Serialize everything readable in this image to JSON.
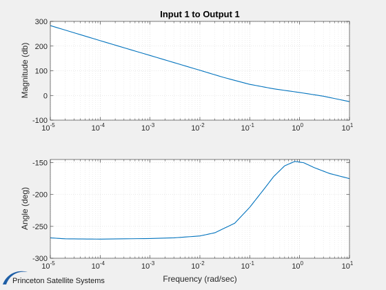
{
  "chart_data": [
    {
      "type": "line",
      "title": "Input 1 to Output 1",
      "xlabel": "",
      "ylabel": "Magnitude (db)",
      "xscale": "log",
      "xlim": [
        1e-05,
        10
      ],
      "ylim": [
        -100,
        300
      ],
      "x_ticks": [
        {
          "value": 1e-05,
          "base": "10",
          "exp": "-5"
        },
        {
          "value": 0.0001,
          "base": "10",
          "exp": "-4"
        },
        {
          "value": 0.001,
          "base": "10",
          "exp": "-3"
        },
        {
          "value": 0.01,
          "base": "10",
          "exp": "-2"
        },
        {
          "value": 0.1,
          "base": "10",
          "exp": "-1"
        },
        {
          "value": 1,
          "base": "10",
          "exp": "0"
        },
        {
          "value": 10,
          "base": "10",
          "exp": "1"
        }
      ],
      "y_ticks": [
        "-100",
        "0",
        "100",
        "200",
        "300"
      ],
      "grid": true,
      "line_color": "#0072bd",
      "series": [
        {
          "x": [
            1e-05,
            0.0001,
            0.001,
            0.01,
            0.03,
            0.1,
            0.3,
            1,
            3,
            10
          ],
          "y": [
            283,
            222,
            162,
            102,
            73,
            45,
            27,
            12,
            -3,
            -25
          ]
        }
      ]
    },
    {
      "type": "line",
      "title": "",
      "xlabel": "Frequency (rad/sec)",
      "ylabel": "Angle (deg)",
      "xscale": "log",
      "xlim": [
        1e-05,
        10
      ],
      "ylim": [
        -300,
        -145
      ],
      "x_ticks": [
        {
          "value": 1e-05,
          "base": "10",
          "exp": "-5"
        },
        {
          "value": 0.0001,
          "base": "10",
          "exp": "-4"
        },
        {
          "value": 0.001,
          "base": "10",
          "exp": "-3"
        },
        {
          "value": 0.01,
          "base": "10",
          "exp": "-2"
        },
        {
          "value": 0.1,
          "base": "10",
          "exp": "-1"
        },
        {
          "value": 1,
          "base": "10",
          "exp": "0"
        },
        {
          "value": 10,
          "base": "10",
          "exp": "1"
        }
      ],
      "y_ticks": [
        "-300",
        "-250",
        "-200",
        "-150"
      ],
      "grid": true,
      "line_color": "#0072bd",
      "series": [
        {
          "x": [
            1e-05,
            2e-05,
            0.0001,
            0.001,
            0.003,
            0.01,
            0.02,
            0.05,
            0.1,
            0.2,
            0.3,
            0.5,
            0.8,
            1.2,
            2,
            4,
            10
          ],
          "y": [
            -268,
            -269.5,
            -270,
            -269,
            -268,
            -265,
            -260,
            -245,
            -220,
            -190,
            -172,
            -155,
            -148,
            -150,
            -158,
            -167,
            -175
          ]
        }
      ]
    }
  ],
  "logo": {
    "text": "Princeton Satellite Systems",
    "color": "#1f5fa6"
  }
}
